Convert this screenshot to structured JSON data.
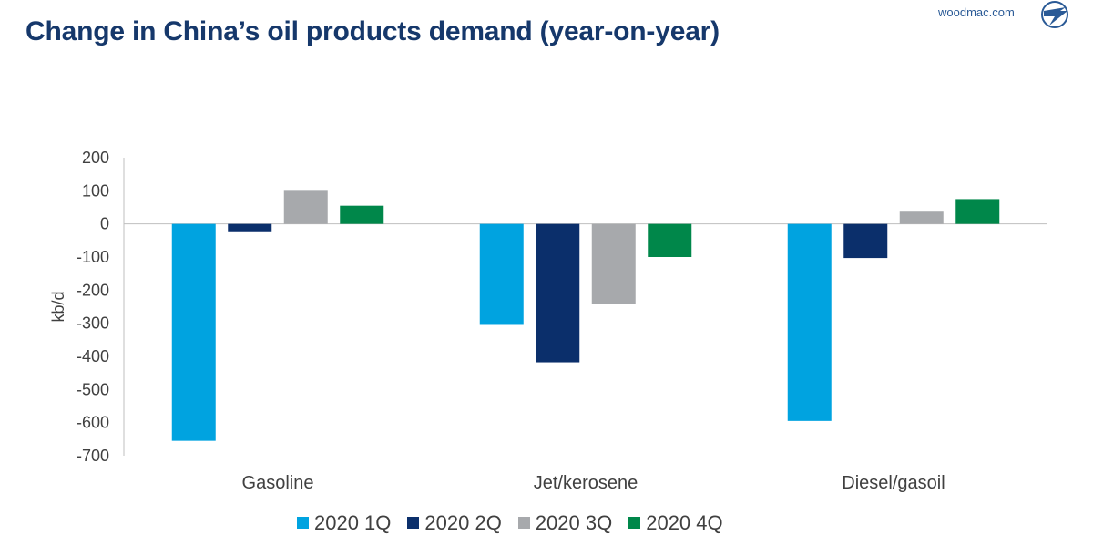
{
  "header": {
    "title": "Change in China’s oil products demand (year-on-year)",
    "brand": "woodmac.com"
  },
  "colors": {
    "title": "#16386b",
    "series": [
      "#00a3e0",
      "#0b2f6b",
      "#a7a9ac",
      "#00874a"
    ]
  },
  "chart_data": {
    "type": "bar",
    "title": "",
    "xlabel": "",
    "ylabel": "kb/d",
    "ylim": [
      -700,
      200
    ],
    "yticks": [
      200,
      100,
      0,
      -100,
      -200,
      -300,
      -400,
      -500,
      -600,
      -700
    ],
    "categories": [
      "Gasoline",
      "Jet/kerosene",
      "Diesel/gasoil"
    ],
    "series": [
      {
        "name": "2020 1Q",
        "values": [
          -655,
          -305,
          -595
        ]
      },
      {
        "name": "2020 2Q",
        "values": [
          -25,
          -418,
          -103
        ]
      },
      {
        "name": "2020 3Q",
        "values": [
          100,
          -243,
          37
        ]
      },
      {
        "name": "2020 4Q",
        "values": [
          55,
          -100,
          75
        ]
      }
    ],
    "grid": false,
    "legend_position": "bottom"
  }
}
